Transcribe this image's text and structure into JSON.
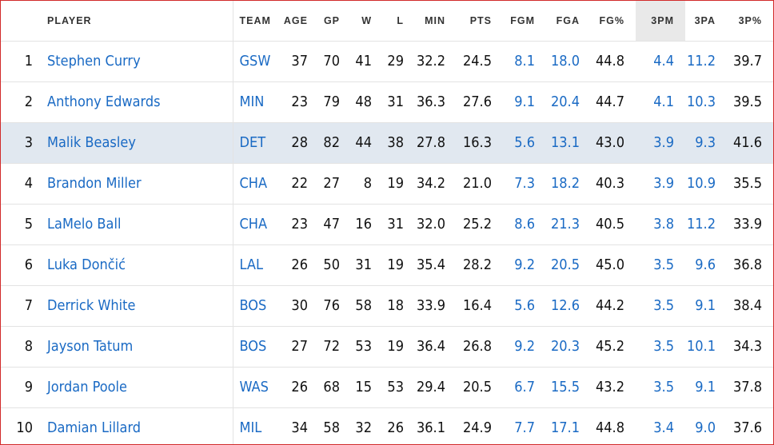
{
  "colors": {
    "link": "#1a6ac4",
    "highlight_row": "#e1e8f0",
    "sorted_header": "#e9e9e9",
    "frame_border": "#d12a2a"
  },
  "table": {
    "sorted_column": "3PM",
    "headers": {
      "rank": "",
      "player": "PLAYER",
      "team": "TEAM",
      "age": "AGE",
      "gp": "GP",
      "w": "W",
      "l": "L",
      "min": "MIN",
      "pts": "PTS",
      "fgm": "FGM",
      "fga": "FGA",
      "fgpct": "FG%",
      "tpm": "3PM",
      "tpa": "3PA",
      "tppct": "3P%"
    },
    "rows": [
      {
        "rank": "1",
        "player": "Stephen Curry",
        "team": "GSW",
        "age": "37",
        "gp": "70",
        "w": "41",
        "l": "29",
        "min": "32.2",
        "pts": "24.5",
        "fgm": "8.1",
        "fga": "18.0",
        "fgpct": "44.8",
        "tpm": "4.4",
        "tpa": "11.2",
        "tppct": "39.7"
      },
      {
        "rank": "2",
        "player": "Anthony Edwards",
        "team": "MIN",
        "age": "23",
        "gp": "79",
        "w": "48",
        "l": "31",
        "min": "36.3",
        "pts": "27.6",
        "fgm": "9.1",
        "fga": "20.4",
        "fgpct": "44.7",
        "tpm": "4.1",
        "tpa": "10.3",
        "tppct": "39.5"
      },
      {
        "rank": "3",
        "player": "Malik Beasley",
        "team": "DET",
        "age": "28",
        "gp": "82",
        "w": "44",
        "l": "38",
        "min": "27.8",
        "pts": "16.3",
        "fgm": "5.6",
        "fga": "13.1",
        "fgpct": "43.0",
        "tpm": "3.9",
        "tpa": "9.3",
        "tppct": "41.6",
        "highlighted": true
      },
      {
        "rank": "4",
        "player": "Brandon Miller",
        "team": "CHA",
        "age": "22",
        "gp": "27",
        "w": "8",
        "l": "19",
        "min": "34.2",
        "pts": "21.0",
        "fgm": "7.3",
        "fga": "18.2",
        "fgpct": "40.3",
        "tpm": "3.9",
        "tpa": "10.9",
        "tppct": "35.5"
      },
      {
        "rank": "5",
        "player": "LaMelo Ball",
        "team": "CHA",
        "age": "23",
        "gp": "47",
        "w": "16",
        "l": "31",
        "min": "32.0",
        "pts": "25.2",
        "fgm": "8.6",
        "fga": "21.3",
        "fgpct": "40.5",
        "tpm": "3.8",
        "tpa": "11.2",
        "tppct": "33.9"
      },
      {
        "rank": "6",
        "player": "Luka Dončić",
        "team": "LAL",
        "age": "26",
        "gp": "50",
        "w": "31",
        "l": "19",
        "min": "35.4",
        "pts": "28.2",
        "fgm": "9.2",
        "fga": "20.5",
        "fgpct": "45.0",
        "tpm": "3.5",
        "tpa": "9.6",
        "tppct": "36.8"
      },
      {
        "rank": "7",
        "player": "Derrick White",
        "team": "BOS",
        "age": "30",
        "gp": "76",
        "w": "58",
        "l": "18",
        "min": "33.9",
        "pts": "16.4",
        "fgm": "5.6",
        "fga": "12.6",
        "fgpct": "44.2",
        "tpm": "3.5",
        "tpa": "9.1",
        "tppct": "38.4"
      },
      {
        "rank": "8",
        "player": "Jayson Tatum",
        "team": "BOS",
        "age": "27",
        "gp": "72",
        "w": "53",
        "l": "19",
        "min": "36.4",
        "pts": "26.8",
        "fgm": "9.2",
        "fga": "20.3",
        "fgpct": "45.2",
        "tpm": "3.5",
        "tpa": "10.1",
        "tppct": "34.3"
      },
      {
        "rank": "9",
        "player": "Jordan Poole",
        "team": "WAS",
        "age": "26",
        "gp": "68",
        "w": "15",
        "l": "53",
        "min": "29.4",
        "pts": "20.5",
        "fgm": "6.7",
        "fga": "15.5",
        "fgpct": "43.2",
        "tpm": "3.5",
        "tpa": "9.1",
        "tppct": "37.8"
      },
      {
        "rank": "10",
        "player": "Damian Lillard",
        "team": "MIL",
        "age": "34",
        "gp": "58",
        "w": "32",
        "l": "26",
        "min": "36.1",
        "pts": "24.9",
        "fgm": "7.7",
        "fga": "17.1",
        "fgpct": "44.8",
        "tpm": "3.4",
        "tpa": "9.0",
        "tppct": "37.6"
      }
    ]
  }
}
